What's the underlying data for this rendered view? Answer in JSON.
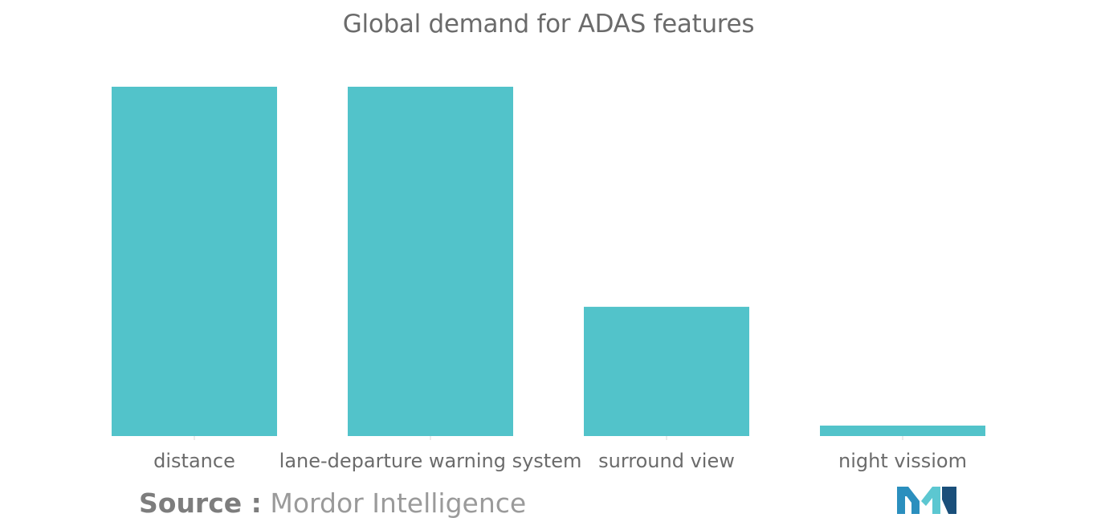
{
  "chart_data": {
    "type": "bar",
    "title": "Global demand for ADAS features",
    "categories": [
      "distance",
      "lane-departure warning system",
      "surround view",
      "night vissiom"
    ],
    "values": [
      100,
      100,
      37,
      3
    ],
    "ylim": [
      0,
      100
    ],
    "xlabel": "",
    "ylabel": "",
    "grid": false,
    "legend": "none",
    "bar_color": "#52C3CA",
    "axis_color": "#d9d9d9"
  },
  "source": {
    "label": "Source :",
    "value": "Mordor Intelligence"
  },
  "logo": {
    "colors": [
      "#2b8fbe",
      "#5cc7d1",
      "#1a4f7a"
    ]
  }
}
